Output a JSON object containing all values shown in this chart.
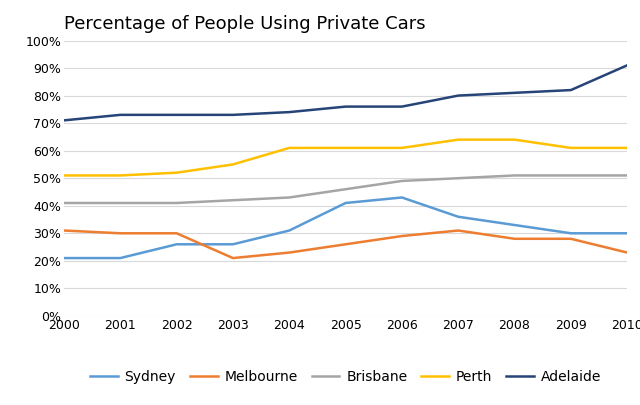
{
  "title": "Percentage of People Using Private Cars",
  "years": [
    2000,
    2001,
    2002,
    2003,
    2004,
    2005,
    2006,
    2007,
    2008,
    2009,
    2010
  ],
  "series": {
    "Sydney": {
      "values": [
        21,
        21,
        26,
        26,
        31,
        41,
        43,
        36,
        33,
        30,
        30
      ],
      "color": "#5b9bd5",
      "label": "Sydney"
    },
    "Melbourne": {
      "values": [
        31,
        30,
        30,
        21,
        23,
        26,
        29,
        31,
        28,
        28,
        23
      ],
      "color": "#ed7d31",
      "label": "Melbourne"
    },
    "Brisbane": {
      "values": [
        41,
        41,
        41,
        42,
        43,
        46,
        49,
        50,
        51,
        51,
        51
      ],
      "color": "#a5a5a5",
      "label": "Brisbane"
    },
    "Perth": {
      "values": [
        51,
        51,
        52,
        55,
        61,
        61,
        61,
        64,
        64,
        61,
        61
      ],
      "color": "#ffc000",
      "label": "Perth"
    },
    "Adelaide": {
      "values": [
        71,
        73,
        73,
        73,
        74,
        76,
        76,
        80,
        81,
        82,
        91
      ],
      "color": "#264478",
      "label": "Adelaide"
    }
  },
  "ylim": [
    0,
    100
  ],
  "yticks": [
    0,
    10,
    20,
    30,
    40,
    50,
    60,
    70,
    80,
    90,
    100
  ],
  "background_color": "#ffffff",
  "grid_color": "#d9d9d9",
  "title_fontsize": 13,
  "legend_fontsize": 10,
  "tick_fontsize": 9
}
